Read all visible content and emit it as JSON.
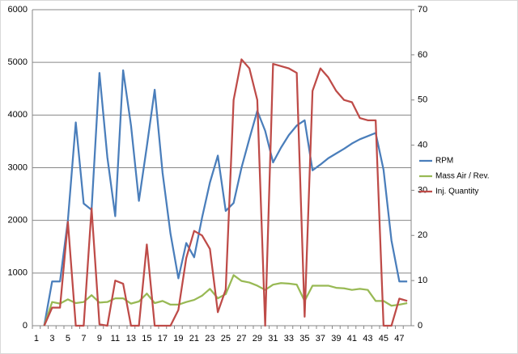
{
  "chart_data": {
    "type": "line",
    "categories": [
      "1",
      null,
      "3",
      null,
      "5",
      null,
      "7",
      null,
      "9",
      null,
      "11",
      null,
      "13",
      null,
      "15",
      null,
      "17",
      null,
      "19",
      null,
      "21",
      null,
      "23",
      null,
      "25",
      null,
      "27",
      null,
      "29",
      null,
      "31",
      null,
      "33",
      null,
      "35",
      null,
      "37",
      null,
      "39",
      null,
      "41",
      null,
      "43",
      null,
      "45",
      null,
      "47",
      null
    ],
    "series": [
      {
        "name": "RPM",
        "color": "#4a7ebb",
        "values": [
          null,
          0,
          840,
          840,
          2000,
          3860,
          2320,
          2200,
          4800,
          3200,
          2080,
          4850,
          3800,
          2370,
          3400,
          4480,
          2900,
          1750,
          900,
          1570,
          1300,
          2050,
          2720,
          3230,
          2180,
          2330,
          3000,
          3550,
          4080,
          3700,
          3100,
          3380,
          3620,
          3800,
          3900,
          2950,
          3060,
          3180,
          3270,
          3360,
          3460,
          3540,
          3600,
          3660,
          2960,
          1620,
          840,
          840
        ]
      },
      {
        "name": "Mass Air / Rev.",
        "color": "#98b954",
        "values": [
          null,
          0,
          450,
          420,
          500,
          430,
          450,
          580,
          440,
          450,
          520,
          520,
          420,
          460,
          610,
          430,
          470,
          400,
          400,
          450,
          490,
          570,
          700,
          520,
          600,
          960,
          850,
          820,
          760,
          680,
          780,
          810,
          800,
          780,
          470,
          760,
          760,
          760,
          720,
          710,
          680,
          700,
          680,
          470,
          470,
          380,
          400,
          430
        ]
      },
      {
        "name": "Inj. Quantity",
        "color": "#be4b48",
        "axis": "y2",
        "values": [
          null,
          0,
          4,
          4,
          23,
          0,
          0,
          26,
          0.3,
          0,
          10,
          9.3,
          0,
          0,
          18,
          0,
          0,
          0,
          3.5,
          15,
          21,
          20,
          17,
          3,
          8,
          50,
          59,
          57,
          50,
          0,
          58,
          57.5,
          57,
          56,
          2,
          52,
          57,
          55,
          52,
          50,
          49.5,
          46,
          45.5,
          45.5,
          0,
          0,
          6,
          5.5
        ]
      }
    ],
    "ylim": [
      0,
      6000
    ],
    "yticks": [
      0,
      1000,
      2000,
      3000,
      4000,
      5000,
      6000
    ],
    "y2lim": [
      0,
      70
    ],
    "y2ticks": [
      0,
      10,
      20,
      30,
      40,
      50,
      60,
      70
    ],
    "grid": true,
    "legend": "right"
  }
}
